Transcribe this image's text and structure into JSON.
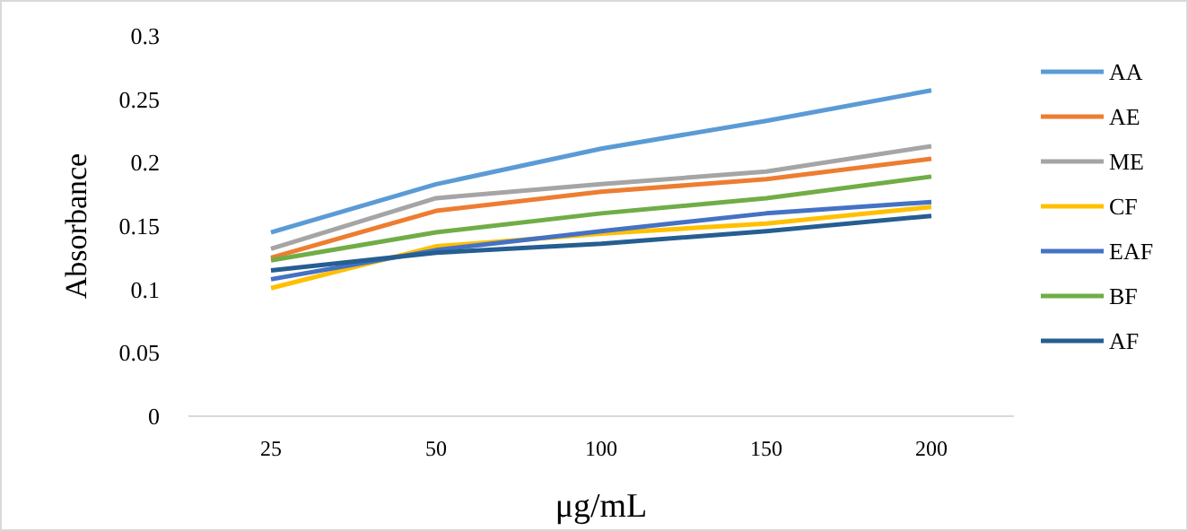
{
  "chart_data": {
    "type": "line",
    "xlabel": "μg/mL",
    "ylabel": "Absorbance",
    "categories": [
      "25",
      "50",
      "100",
      "150",
      "200"
    ],
    "ylim": [
      0,
      0.3
    ],
    "yticks": [
      0,
      0.05,
      0.1,
      0.15,
      0.2,
      0.25,
      0.3
    ],
    "grid": false,
    "legend": "right",
    "series": [
      {
        "name": "AA",
        "color": "#5b9bd5",
        "values": [
          0.145,
          0.183,
          0.211,
          0.233,
          0.257
        ]
      },
      {
        "name": "AE",
        "color": "#ed7d31",
        "values": [
          0.125,
          0.162,
          0.177,
          0.187,
          0.203
        ]
      },
      {
        "name": "ME",
        "color": "#a5a5a5",
        "values": [
          0.132,
          0.172,
          0.183,
          0.193,
          0.213
        ]
      },
      {
        "name": "CF",
        "color": "#ffc000",
        "values": [
          0.101,
          0.134,
          0.144,
          0.152,
          0.165
        ]
      },
      {
        "name": "EAF",
        "color": "#4472c4",
        "values": [
          0.108,
          0.131,
          0.146,
          0.16,
          0.169
        ]
      },
      {
        "name": "BF",
        "color": "#70ad47",
        "values": [
          0.123,
          0.145,
          0.16,
          0.172,
          0.189
        ]
      },
      {
        "name": "AF",
        "color": "#255e91",
        "values": [
          0.115,
          0.129,
          0.136,
          0.146,
          0.158
        ]
      }
    ]
  }
}
